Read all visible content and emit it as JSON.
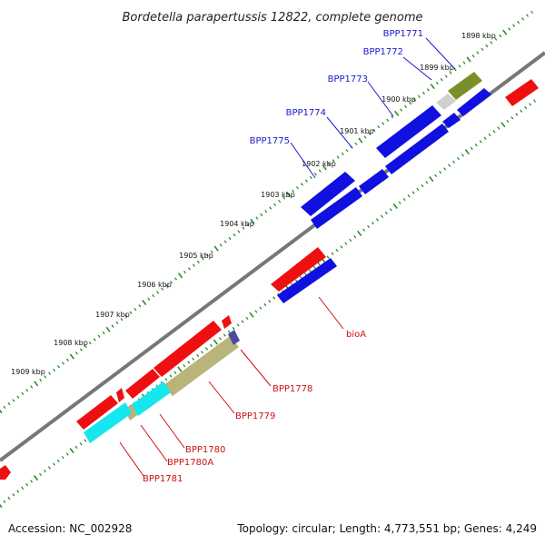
{
  "title": "Bordetella parapertussis 12822, complete genome",
  "footer": {
    "accession": "Accession: NC_002928",
    "info": "Topology: circular; Length: 4,773,551 bp; Genes: 4,249"
  },
  "kbp_ticks": [
    "1898 kbp",
    "1899 kbp",
    "1900 kbp",
    "1901 kbp",
    "1902 kbp",
    "1903 kbp",
    "1904 kbp",
    "1905 kbp",
    "1906 kbp",
    "1907 kbp",
    "1908 kbp",
    "1909 kbp"
  ],
  "genes_forward": [
    "BPP1771",
    "BPP1772",
    "BPP1773",
    "BPP1774",
    "BPP1775"
  ],
  "genes_reverse": [
    "bioA",
    "BPP1778",
    "BPP1779",
    "BPP1780",
    "BPP1780A",
    "BPP1781"
  ],
  "colors": {
    "forward_label": "#1a1acc",
    "reverse_label": "#cc1111",
    "blue_feature": "#1010e0",
    "red_feature": "#ee1010",
    "olive_feature": "#7a8f2a",
    "khaki_feature": "#b9b47a",
    "cyan_feature": "#16e6ee",
    "tick_green": "#2a8a2a"
  }
}
